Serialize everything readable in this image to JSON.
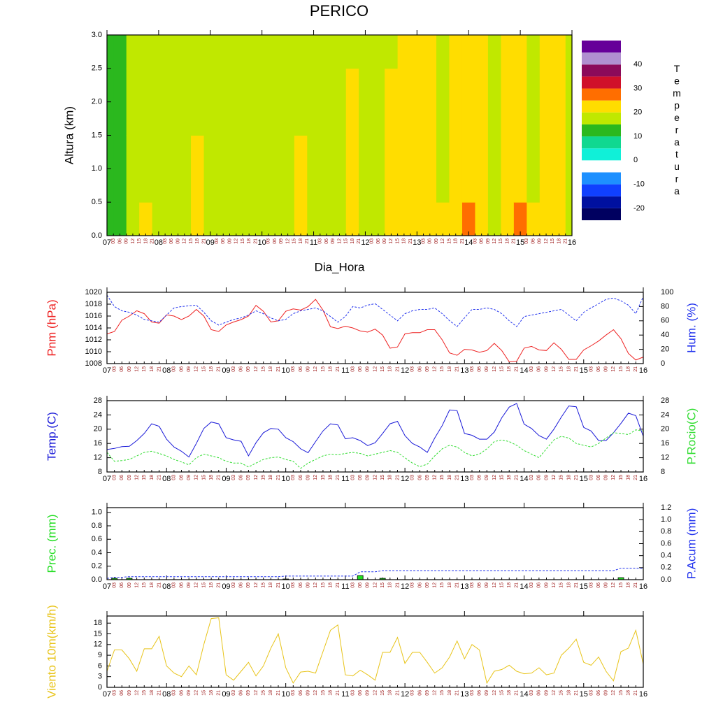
{
  "title": "PERICO",
  "chart_data": [
    {
      "type": "contour",
      "xlabel": "Dia_Hora",
      "ylabel": "Altura (km)",
      "days": [
        "07",
        "08",
        "09",
        "10",
        "11",
        "12",
        "13",
        "14",
        "15",
        "16"
      ],
      "hours": [
        "03",
        "06",
        "09",
        "12",
        "15",
        "18",
        "21"
      ],
      "heights": [
        0,
        1,
        2,
        3
      ],
      "ylim": [
        0,
        3
      ],
      "yticks": [
        {
          "value": 0,
          "label": "0.0"
        },
        0.5,
        {
          "value": 1,
          "label": "1.0"
        },
        1.5,
        {
          "value": 2,
          "label": "2.0"
        },
        2.5,
        {
          "value": 3,
          "label": "3.0"
        }
      ],
      "z": [
        [
          12,
          12,
          12,
          12
        ],
        [
          12,
          12,
          12,
          12
        ],
        [
          18,
          17,
          17,
          16
        ],
        [
          21,
          18,
          17,
          16
        ],
        [
          18,
          17,
          17,
          16
        ],
        [
          18,
          17,
          17,
          16
        ],
        [
          19,
          18,
          17,
          16
        ],
        [
          22,
          21,
          18,
          17
        ],
        [
          19,
          18,
          17,
          16
        ],
        [
          18,
          17,
          17,
          16
        ],
        [
          18,
          17,
          17,
          16
        ],
        [
          19,
          18,
          17,
          16
        ],
        [
          18,
          17,
          17,
          16
        ],
        [
          18,
          17,
          17,
          16
        ],
        [
          19,
          18,
          17,
          16
        ],
        [
          21,
          20,
          17,
          16
        ],
        [
          18,
          17,
          17,
          16
        ],
        [
          18,
          17,
          17,
          16
        ],
        [
          19,
          18,
          17,
          16
        ],
        [
          22,
          21,
          20,
          18
        ],
        [
          19,
          18,
          18,
          17
        ],
        [
          19,
          18,
          18,
          17
        ],
        [
          21,
          20,
          20,
          19
        ],
        [
          23,
          22,
          21,
          21
        ],
        [
          23,
          22,
          21,
          21
        ],
        [
          22,
          21,
          21,
          20
        ],
        [
          20,
          19,
          19,
          18
        ],
        [
          24,
          22,
          21,
          21
        ],
        [
          27,
          24,
          21,
          21
        ],
        [
          22,
          21,
          21,
          20
        ],
        [
          19,
          19,
          19,
          18
        ],
        [
          23,
          22,
          21,
          20
        ],
        [
          26,
          22,
          21,
          20
        ],
        [
          20,
          19,
          19,
          18
        ],
        [
          21,
          21,
          21,
          20
        ],
        [
          22,
          21,
          20,
          20
        ],
        [
          19,
          18,
          18,
          17
        ]
      ],
      "colorbar": {
        "label": "Temperatura",
        "levels": [
          -25,
          -20,
          -15,
          -10,
          -5,
          0,
          5,
          10,
          15,
          20,
          25,
          30,
          35,
          40,
          45,
          50
        ],
        "colors": [
          "#000060",
          "#0010a0",
          "#1040ff",
          "#1e90ff",
          "#ffffff",
          "#10f0d8",
          "#10d890",
          "#2bb81e",
          "#c0e800",
          "#ffdd00",
          "#ff6e00",
          "#d0102a",
          "#8b0a5a",
          "#b090d0",
          "#660099"
        ],
        "ticks": [
          -20,
          -10,
          0,
          10,
          20,
          30,
          40
        ]
      }
    },
    {
      "type": "line",
      "days": [
        "07",
        "08",
        "09",
        "10",
        "11",
        "12",
        "13",
        "14",
        "15",
        "16"
      ],
      "hours": [
        "03",
        "06",
        "09",
        "12",
        "15",
        "18",
        "21"
      ],
      "ylim": [
        1008,
        1020
      ],
      "yticks": [
        1008,
        1010,
        1012,
        1014,
        1016,
        1018,
        1020
      ],
      "y2lim": [
        0,
        100
      ],
      "y2ticks": [
        0,
        20,
        40,
        60,
        80,
        100
      ],
      "series": [
        {
          "name": "Pnm (hPa)",
          "color": "#ee2222",
          "dashed": false,
          "values": [
            1013.0,
            1013.4,
            1015.3,
            1016.0,
            1016.9,
            1016.4,
            1015.0,
            1014.8,
            1016.2,
            1016.0,
            1015.4,
            1016.0,
            1017.1,
            1016.0,
            1013.7,
            1013.4,
            1014.5,
            1015.0,
            1015.4,
            1016.0,
            1017.8,
            1016.8,
            1015.0,
            1015.2,
            1016.8,
            1017.2,
            1017.0,
            1017.6,
            1018.8,
            1017.0,
            1014.2,
            1013.9,
            1014.3,
            1014.0,
            1013.5,
            1013.3,
            1013.8,
            1012.8,
            1010.6,
            1010.8,
            1013.0,
            1013.2,
            1013.2,
            1013.7,
            1013.7,
            1012.0,
            1009.8,
            1009.4,
            1010.4,
            1010.3,
            1009.9,
            1010.2,
            1011.4,
            1010.2,
            1008.3,
            1008.4,
            1010.6,
            1010.9,
            1010.3,
            1010.2,
            1011.5,
            1010.4,
            1008.7,
            1008.7,
            1010.3,
            1011.0,
            1011.8,
            1012.8,
            1013.7,
            1012.2,
            1009.7,
            1008.6,
            1009.1
          ]
        },
        {
          "name": "Hum. (%)",
          "color": "#2233ee",
          "dashed": true,
          "axis": "y2",
          "values": [
            96,
            80,
            74,
            72,
            68,
            62,
            60,
            58,
            68,
            78,
            80,
            81,
            82,
            72,
            60,
            54,
            58,
            62,
            64,
            68,
            74,
            70,
            64,
            60,
            62,
            70,
            74,
            76,
            78,
            74,
            66,
            58,
            66,
            80,
            78,
            82,
            84,
            76,
            68,
            60,
            70,
            74,
            76,
            76,
            78,
            70,
            60,
            52,
            64,
            76,
            76,
            78,
            76,
            70,
            60,
            52,
            66,
            68,
            70,
            72,
            74,
            76,
            68,
            60,
            72,
            78,
            84,
            90,
            92,
            88,
            82,
            70,
            94
          ]
        }
      ]
    },
    {
      "type": "line",
      "days": [
        "07",
        "08",
        "09",
        "10",
        "11",
        "12",
        "13",
        "14",
        "15",
        "16"
      ],
      "hours": [
        "03",
        "06",
        "09",
        "12",
        "15",
        "18",
        "21"
      ],
      "ylim": [
        8,
        28
      ],
      "yticks": [
        8,
        12,
        16,
        20,
        24,
        28
      ],
      "y2lim": [
        8,
        28
      ],
      "y2ticks": [
        8,
        12,
        16,
        20,
        24,
        28
      ],
      "series": [
        {
          "name": "Temp.(C)",
          "color": "#1a1ad8",
          "dashed": false,
          "values": [
            14.3,
            14.6,
            15.1,
            15.2,
            16.8,
            18.8,
            21.5,
            20.8,
            17.2,
            15.0,
            13.8,
            12.2,
            16.0,
            20.2,
            22.0,
            21.5,
            17.6,
            17.0,
            16.6,
            12.5,
            16.2,
            19.0,
            20.2,
            20.0,
            17.6,
            16.5,
            14.5,
            13.4,
            16.5,
            19.5,
            21.5,
            21.2,
            17.3,
            17.6,
            16.8,
            15.4,
            16.2,
            18.8,
            21.5,
            22.2,
            18.2,
            16.0,
            15.0,
            13.5,
            17.5,
            21.0,
            25.4,
            25.2,
            18.8,
            18.3,
            17.2,
            17.2,
            19.2,
            23.2,
            26.2,
            27.2,
            21.4,
            20.2,
            18.2,
            17.2,
            20.0,
            23.4,
            26.5,
            26.3,
            20.5,
            19.5,
            16.8,
            16.8,
            19.0,
            21.6,
            24.5,
            23.8,
            18.0
          ]
        },
        {
          "name": "P.Rocio(C)",
          "color": "#33dd33",
          "dashed": true,
          "axis": "y2",
          "values": [
            13.5,
            11.0,
            11.2,
            11.5,
            12.5,
            13.5,
            13.8,
            13.2,
            12.5,
            11.5,
            10.8,
            10.0,
            12.0,
            13.0,
            12.5,
            12.0,
            11.0,
            10.5,
            10.5,
            9.4,
            10.5,
            11.5,
            12.0,
            12.2,
            11.5,
            11.0,
            9.0,
            10.5,
            11.5,
            12.5,
            13.0,
            12.8,
            13.2,
            13.5,
            13.2,
            12.5,
            13.0,
            13.5,
            14.0,
            13.5,
            12.0,
            10.5,
            9.5,
            10.2,
            12.5,
            14.5,
            15.5,
            15.0,
            13.5,
            12.5,
            13.0,
            14.5,
            16.5,
            17.0,
            16.5,
            15.5,
            14.0,
            13.0,
            12.0,
            14.5,
            17.0,
            18.0,
            17.5,
            16.0,
            15.5,
            15.0,
            16.0,
            17.5,
            19.0,
            18.8,
            18.5,
            19.8,
            19.5
          ]
        }
      ]
    },
    {
      "type": "combo",
      "days": [
        "07",
        "08",
        "09",
        "10",
        "11",
        "12",
        "13",
        "14",
        "15",
        "16"
      ],
      "hours": [
        "03",
        "06",
        "09",
        "12",
        "15",
        "18",
        "21"
      ],
      "ylim": [
        0,
        1.07
      ],
      "yticks": [
        {
          "value": 0,
          "label": "0.0"
        },
        0.2,
        0.4,
        0.6,
        0.8,
        {
          "value": 1,
          "label": "1.0"
        }
      ],
      "y2lim": [
        0,
        1.2
      ],
      "y2ticks": [
        {
          "value": 0,
          "label": "0.0"
        },
        0.2,
        0.4,
        0.6,
        0.8,
        {
          "value": 1,
          "label": "1.0"
        },
        1.2
      ],
      "series": [
        {
          "name": "Prec. (mm)",
          "color": "#22dd22",
          "kind": "bar",
          "values": [
            0,
            0.02,
            0,
            0.02,
            0,
            0,
            0,
            0,
            0,
            0,
            0,
            0,
            0,
            0,
            0,
            0,
            0,
            0,
            0,
            0,
            0,
            0,
            0,
            0,
            0.01,
            0,
            0,
            0,
            0,
            0,
            0,
            0,
            0,
            0,
            0.06,
            0,
            0,
            0.02,
            0,
            0,
            0,
            0,
            0,
            0,
            0,
            0,
            0,
            0,
            0,
            0,
            0,
            0,
            0,
            0,
            0,
            0,
            0,
            0,
            0,
            0,
            0,
            0,
            0,
            0,
            0,
            0,
            0,
            0,
            0,
            0.03,
            0,
            0,
            0
          ]
        },
        {
          "name": "P.Acum (mm)",
          "color": "#2233ee",
          "kind": "line",
          "dashed": true,
          "axis": "y2",
          "values": [
            0.02,
            0.04,
            0.04,
            0.05,
            0.05,
            0.05,
            0.05,
            0.05,
            0.05,
            0.05,
            0.05,
            0.05,
            0.05,
            0.05,
            0.05,
            0.05,
            0.05,
            0.05,
            0.05,
            0.05,
            0.05,
            0.05,
            0.05,
            0.05,
            0.06,
            0.06,
            0.06,
            0.06,
            0.06,
            0.06,
            0.06,
            0.06,
            0.06,
            0.06,
            0.13,
            0.13,
            0.13,
            0.15,
            0.15,
            0.15,
            0.15,
            0.15,
            0.15,
            0.15,
            0.15,
            0.15,
            0.15,
            0.15,
            0.15,
            0.15,
            0.15,
            0.15,
            0.15,
            0.15,
            0.15,
            0.15,
            0.15,
            0.15,
            0.15,
            0.15,
            0.15,
            0.15,
            0.15,
            0.15,
            0.15,
            0.15,
            0.15,
            0.15,
            0.15,
            0.19,
            0.19,
            0.19,
            0.19
          ]
        }
      ]
    },
    {
      "type": "line",
      "days": [
        "07",
        "08",
        "09",
        "10",
        "11",
        "12",
        "13",
        "14",
        "15",
        "16"
      ],
      "hours": [
        "03",
        "06",
        "09",
        "12",
        "15",
        "18",
        "21"
      ],
      "ylim": [
        0,
        20
      ],
      "yticks": [
        0,
        3,
        6,
        9,
        12,
        15,
        18
      ],
      "series": [
        {
          "name": "Viento 10m(km/h)",
          "color": "#e8c41a",
          "dashed": false,
          "values": [
            4.5,
            10.5,
            10.5,
            8,
            4.5,
            10.8,
            10.8,
            14.3,
            6,
            4,
            3,
            6,
            3.5,
            12,
            19.3,
            19.5,
            3.5,
            2,
            4.5,
            7,
            3.2,
            6,
            11,
            15,
            5.5,
            1.2,
            4.3,
            4.5,
            4,
            10,
            16,
            17.5,
            3.5,
            3.2,
            4.8,
            3.5,
            2,
            9.8,
            9.8,
            14,
            6.7,
            9.8,
            9.8,
            7,
            4,
            5.5,
            8.5,
            13,
            8,
            12,
            10.5,
            1.2,
            4.5,
            5,
            6.2,
            4.5,
            3.8,
            4,
            5.5,
            3.5,
            4,
            9,
            11,
            13.5,
            7,
            6.2,
            8.5,
            4.5,
            1.8,
            10,
            11,
            16,
            6.5
          ]
        }
      ]
    }
  ]
}
